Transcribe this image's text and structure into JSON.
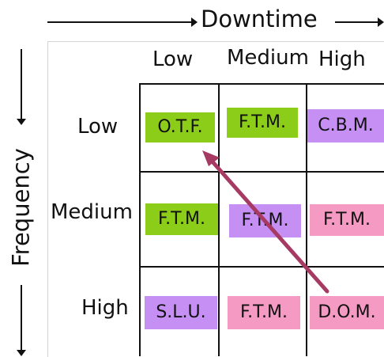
{
  "axes": {
    "x_title": "Downtime",
    "y_title": "Frequency"
  },
  "columns": [
    "Low",
    "Medium",
    "High"
  ],
  "rows": [
    "Low",
    "Medium",
    "High"
  ],
  "cells": [
    [
      "O.T.F.",
      "F.T.M.",
      "C.B.M."
    ],
    [
      "F.T.M.",
      "F.T.M.",
      "F.T.M."
    ],
    [
      "S.L.U.",
      "F.T.M.",
      "D.O.M."
    ]
  ],
  "colors": {
    "green": "#8ccd1a",
    "lavender": "#c58ff4",
    "pink": "#f59ac3",
    "arrow": "#a63a63",
    "grid": "#111111"
  },
  "cell_colors": [
    [
      "green",
      "green",
      "lavender"
    ],
    [
      "green",
      "lavender",
      "pink"
    ],
    [
      "lavender",
      "pink",
      "pink"
    ]
  ],
  "arrow": {
    "from": "D.O.M.",
    "to": "O.T.F."
  }
}
